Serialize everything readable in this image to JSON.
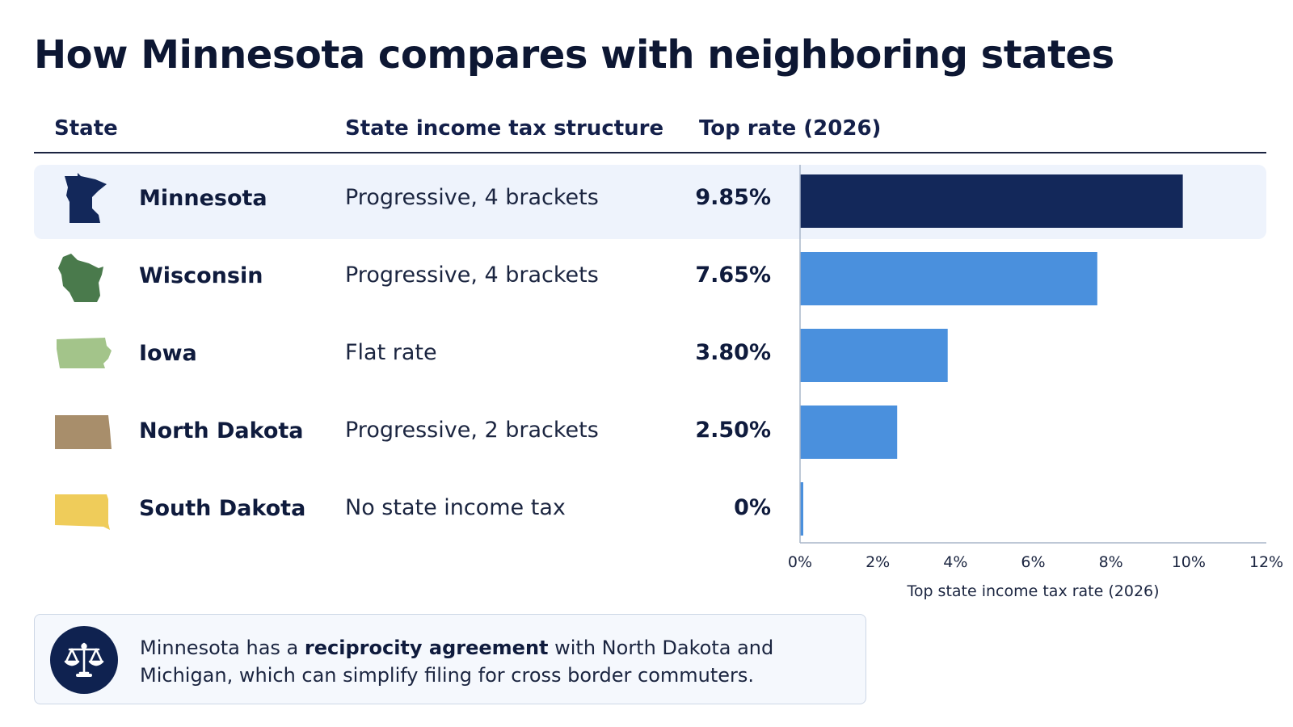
{
  "title": "How Minnesota compares with neighboring states",
  "columns": {
    "state": "State",
    "structure": "State income tax structure",
    "rate": "Top rate (2026)"
  },
  "rows": [
    {
      "name": "Minnesota",
      "structure": "Progressive, 4 brackets",
      "rate": "9.85%",
      "icon": "minnesota-outline",
      "color": "#13285a",
      "highlight": true
    },
    {
      "name": "Wisconsin",
      "structure": "Progressive, 4 brackets",
      "rate": "7.65%",
      "icon": "wisconsin-outline",
      "color": "#4a7a4c"
    },
    {
      "name": "Iowa",
      "structure": "Flat rate",
      "rate": "3.80%",
      "icon": "iowa-outline",
      "color": "#a3c48a"
    },
    {
      "name": "North Dakota",
      "structure": "Progressive, 2 brackets",
      "rate": "2.50%",
      "icon": "north-dakota-outline",
      "color": "#a88e6b"
    },
    {
      "name": "South Dakota",
      "structure": "No state income tax",
      "rate": "0%",
      "icon": "south-dakota-outline",
      "color": "#efcc5a"
    }
  ],
  "chart_data": {
    "type": "bar",
    "orientation": "horizontal",
    "categories": [
      "Minnesota",
      "Wisconsin",
      "Iowa",
      "North Dakota",
      "South Dakota"
    ],
    "values": [
      9.85,
      7.65,
      3.8,
      2.5,
      0
    ],
    "xlabel": "Top state income tax rate (2026)",
    "xlim": [
      0,
      12
    ],
    "xticks": [
      "0%",
      "2%",
      "4%",
      "6%",
      "8%",
      "10%",
      "12%"
    ],
    "xtick_values": [
      0,
      2,
      4,
      6,
      8,
      10,
      12
    ],
    "colors": {
      "highlight": "#13285a",
      "default": "#4a90dd"
    },
    "grid": false
  },
  "callout": {
    "icon": "scales-of-justice-icon",
    "text_before": "Minnesota has a ",
    "text_bold": "reciprocity agreement",
    "text_after": " with North Dakota and Michigan, which can simplify filing for cross border commuters."
  }
}
